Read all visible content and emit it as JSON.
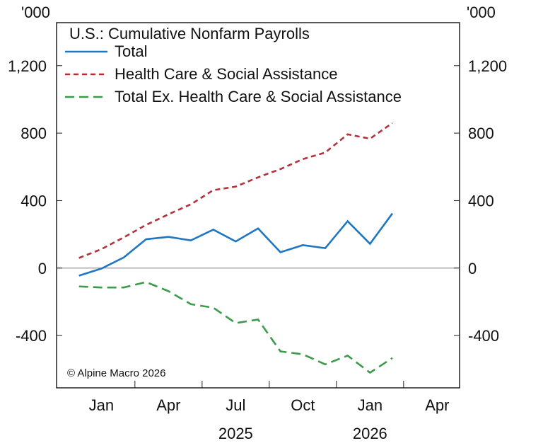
{
  "chart_data": {
    "type": "line",
    "title": "U.S.: Cumulative Nonfarm Payrolls",
    "unit_label_left": "'000",
    "unit_label_right": "'000",
    "x": [
      "2024-12",
      "2025-01",
      "2025-02",
      "2025-03",
      "2025-04",
      "2025-05",
      "2025-06",
      "2025-07",
      "2025-08",
      "2025-09",
      "2025-10",
      "2025-11",
      "2025-12",
      "2026-01",
      "2026-02"
    ],
    "xticks": [
      {
        "label": "Jan",
        "month": "2025-01"
      },
      {
        "label": "Apr",
        "month": "2025-04"
      },
      {
        "label": "Jul",
        "month": "2025-07"
      },
      {
        "label": "Oct",
        "month": "2025-10"
      },
      {
        "label": "Jan",
        "month": "2026-01"
      },
      {
        "label": "Apr",
        "month": "2026-04"
      }
    ],
    "year_labels": [
      {
        "label": "2025",
        "month": "2025-07"
      },
      {
        "label": "2026",
        "month": "2026-01"
      }
    ],
    "xlim": [
      "2024-11",
      "2026-05"
    ],
    "ylim": [
      -710,
      1455
    ],
    "yticks": [
      -400,
      0,
      400,
      800,
      1200
    ],
    "ytick_labels": [
      "-400",
      "0",
      "400",
      "800",
      "1,200"
    ],
    "grid": false,
    "legend_placement": "top-left",
    "series": [
      {
        "name": "Total",
        "color": "#1f77c4",
        "dash": "solid",
        "values": [
          -45,
          -3,
          63,
          171,
          185,
          164,
          228,
          158,
          235,
          94,
          136,
          118,
          278,
          144,
          324
        ]
      },
      {
        "name": "Health Care & Social Assistance",
        "color": "#b5313a",
        "dash": "short",
        "values": [
          60,
          112,
          182,
          256,
          319,
          378,
          462,
          483,
          538,
          587,
          646,
          685,
          793,
          767,
          860
        ]
      },
      {
        "name": "Total Ex. Health Care & Social Assistance",
        "color": "#3c9a4a",
        "dash": "long",
        "values": [
          -109,
          -115,
          -115,
          -83,
          -137,
          -214,
          -235,
          -326,
          -305,
          -494,
          -511,
          -571,
          -519,
          -620,
          -533
        ]
      }
    ],
    "annotation": "© Alpine Macro 2026"
  }
}
